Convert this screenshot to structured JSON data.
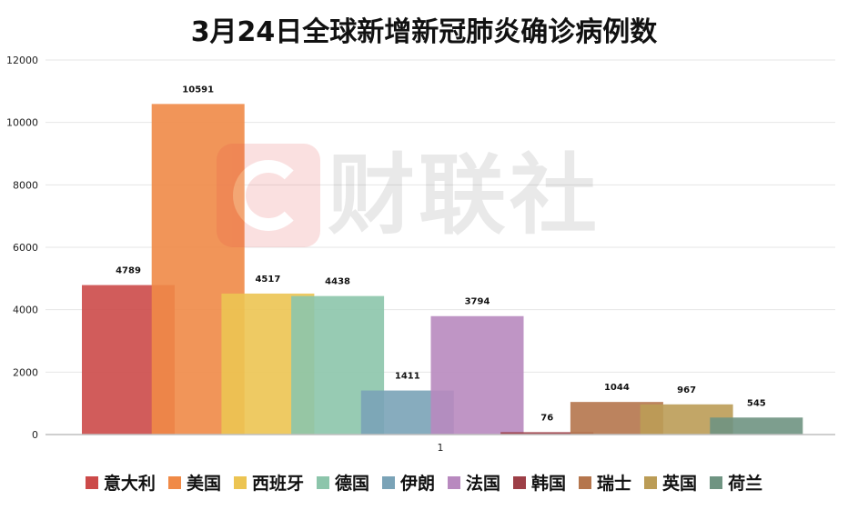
{
  "chart_data": {
    "type": "bar",
    "title": "3月24日全球新增新冠肺炎确诊病例数",
    "categories": [
      "1"
    ],
    "ylim": [
      0,
      12000
    ],
    "yticks": [
      0,
      2000,
      4000,
      6000,
      8000,
      10000,
      12000
    ],
    "grid": true,
    "legend_position": "bottom",
    "series": [
      {
        "name": "意大利",
        "values": [
          4789
        ],
        "color": "#cc4a49"
      },
      {
        "name": "美国",
        "values": [
          10591
        ],
        "color": "#f08a47"
      },
      {
        "name": "西班牙",
        "values": [
          4517
        ],
        "color": "#ecc452"
      },
      {
        "name": "德国",
        "values": [
          4438
        ],
        "color": "#8cc5ab"
      },
      {
        "name": "伊朗",
        "values": [
          1411
        ],
        "color": "#7aa3b7"
      },
      {
        "name": "法国",
        "values": [
          3794
        ],
        "color": "#b889bf"
      },
      {
        "name": "韩国",
        "values": [
          76
        ],
        "color": "#9d3f47"
      },
      {
        "name": "瑞士",
        "values": [
          1044
        ],
        "color": "#b5764d"
      },
      {
        "name": "英国",
        "values": [
          967
        ],
        "color": "#bb9c56"
      },
      {
        "name": "荷兰",
        "values": [
          545
        ],
        "color": "#6f9482"
      }
    ]
  },
  "watermark": {
    "text": "财联社"
  }
}
